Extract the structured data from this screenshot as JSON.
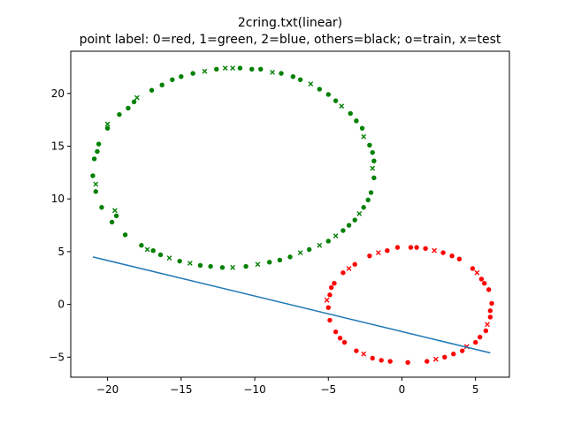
{
  "chart_data": {
    "type": "scatter",
    "title_lines": [
      "2cring.txt(linear)",
      "point label: 0=red, 1=green, 2=blue, others=black; o=train, x=test"
    ],
    "xlabel": "",
    "ylabel": "",
    "xlim": [
      -22.5,
      7.3
    ],
    "ylim": [
      -6.9,
      24.0
    ],
    "xticks": [
      -20,
      -15,
      -10,
      -5,
      0,
      5
    ],
    "xtick_labels": [
      "−20",
      "−15",
      "−10",
      "−5",
      "0",
      "5"
    ],
    "yticks": [
      -5,
      0,
      5,
      10,
      15,
      20
    ],
    "ytick_labels": [
      "−5",
      "0",
      "5",
      "10",
      "15",
      "20"
    ],
    "grid": false,
    "legend": "none",
    "colors": {
      "class0": "#ff0000",
      "class1": "#008000",
      "line": "#1f77b4"
    },
    "series": [
      {
        "label": 0,
        "split": "train",
        "marker": "circle",
        "color": "#ff0000",
        "points": [
          [
            0.6,
            5.4
          ],
          [
            1.6,
            5.3
          ],
          [
            2.8,
            4.9
          ],
          [
            3.9,
            4.3
          ],
          [
            4.8,
            3.4
          ],
          [
            5.4,
            2.4
          ],
          [
            5.9,
            1.4
          ],
          [
            6.1,
            0.1
          ],
          [
            6.0,
            -1.2
          ],
          [
            5.7,
            -2.5
          ],
          [
            5.0,
            -3.6
          ],
          [
            4.1,
            -4.4
          ],
          [
            2.9,
            -5.0
          ],
          [
            1.7,
            -5.4
          ],
          [
            0.4,
            -5.5
          ],
          [
            -0.8,
            -5.4
          ],
          [
            -2.0,
            -5.1
          ],
          [
            -3.1,
            -4.4
          ],
          [
            -3.9,
            -3.6
          ],
          [
            -4.5,
            -2.6
          ],
          [
            -4.9,
            -1.5
          ],
          [
            -5.0,
            -0.3
          ],
          [
            -4.9,
            0.9
          ],
          [
            -4.6,
            2.0
          ],
          [
            -4.0,
            3.0
          ],
          [
            -3.2,
            3.8
          ],
          [
            -2.2,
            4.6
          ],
          [
            -1.0,
            5.1
          ],
          [
            -0.3,
            5.4
          ],
          [
            1.0,
            5.4
          ],
          [
            3.4,
            4.6
          ],
          [
            5.6,
            2.0
          ],
          [
            6.0,
            -0.6
          ],
          [
            5.3,
            -3.1
          ],
          [
            3.5,
            -4.7
          ],
          [
            -1.4,
            -5.3
          ],
          [
            -4.2,
            -3.2
          ],
          [
            -4.8,
            1.6
          ]
        ]
      },
      {
        "label": 0,
        "split": "test",
        "marker": "x",
        "color": "#ff0000",
        "points": [
          [
            2.2,
            5.1
          ],
          [
            5.1,
            3.0
          ],
          [
            5.8,
            -1.9
          ],
          [
            2.3,
            -5.2
          ],
          [
            -2.6,
            -4.7
          ],
          [
            -5.1,
            0.4
          ],
          [
            -3.6,
            3.4
          ],
          [
            4.4,
            -4.0
          ],
          [
            -1.6,
            4.9
          ]
        ]
      },
      {
        "label": 1,
        "split": "train",
        "marker": "circle",
        "color": "#008000",
        "points": [
          [
            -11.0,
            22.4
          ],
          [
            -9.6,
            22.3
          ],
          [
            -8.2,
            21.9
          ],
          [
            -6.9,
            21.3
          ],
          [
            -5.6,
            20.4
          ],
          [
            -4.5,
            19.3
          ],
          [
            -3.5,
            18.1
          ],
          [
            -2.7,
            16.7
          ],
          [
            -2.2,
            15.1
          ],
          [
            -1.9,
            13.6
          ],
          [
            -1.9,
            12.0
          ],
          [
            -2.1,
            10.6
          ],
          [
            -2.6,
            9.2
          ],
          [
            -3.2,
            8.0
          ],
          [
            -4.0,
            7.0
          ],
          [
            -5.0,
            6.0
          ],
          [
            -6.3,
            5.2
          ],
          [
            -7.6,
            4.5
          ],
          [
            -9.0,
            4.0
          ],
          [
            -10.6,
            3.6
          ],
          [
            -12.2,
            3.5
          ],
          [
            -13.7,
            3.7
          ],
          [
            -15.1,
            4.1
          ],
          [
            -16.4,
            4.7
          ],
          [
            -17.7,
            5.6
          ],
          [
            -18.8,
            6.6
          ],
          [
            -19.7,
            7.8
          ],
          [
            -20.4,
            9.2
          ],
          [
            -20.8,
            10.7
          ],
          [
            -21.0,
            12.2
          ],
          [
            -20.9,
            13.8
          ],
          [
            -20.6,
            15.2
          ],
          [
            -20.0,
            16.7
          ],
          [
            -19.2,
            18.0
          ],
          [
            -18.2,
            19.2
          ],
          [
            -17.0,
            20.3
          ],
          [
            -15.6,
            21.3
          ],
          [
            -14.2,
            21.9
          ],
          [
            -12.6,
            22.3
          ],
          [
            -10.2,
            22.3
          ],
          [
            -7.4,
            21.6
          ],
          [
            -5.0,
            19.9
          ],
          [
            -3.1,
            17.4
          ],
          [
            -2.0,
            14.4
          ],
          [
            -2.3,
            9.9
          ],
          [
            -3.6,
            7.5
          ],
          [
            -8.3,
            4.2
          ],
          [
            -13.0,
            3.6
          ],
          [
            -16.9,
            5.1
          ],
          [
            -19.4,
            8.4
          ],
          [
            -20.7,
            14.5
          ],
          [
            -18.6,
            18.6
          ],
          [
            -16.3,
            20.8
          ],
          [
            -15.0,
            21.6
          ]
        ]
      },
      {
        "label": 1,
        "split": "test",
        "marker": "x",
        "color": "#008000",
        "points": [
          [
            -12.0,
            22.4
          ],
          [
            -11.5,
            22.4
          ],
          [
            -8.8,
            22.0
          ],
          [
            -6.2,
            20.9
          ],
          [
            -4.1,
            18.8
          ],
          [
            -2.6,
            15.9
          ],
          [
            -2.0,
            12.9
          ],
          [
            -2.9,
            8.6
          ],
          [
            -4.5,
            6.5
          ],
          [
            -5.6,
            5.6
          ],
          [
            -6.9,
            4.9
          ],
          [
            -9.8,
            3.8
          ],
          [
            -11.5,
            3.5
          ],
          [
            -14.4,
            3.9
          ],
          [
            -15.8,
            4.4
          ],
          [
            -17.3,
            5.2
          ],
          [
            -19.5,
            8.9
          ],
          [
            -20.8,
            11.4
          ],
          [
            -20.0,
            17.1
          ],
          [
            -18.0,
            19.6
          ],
          [
            -13.4,
            22.1
          ]
        ]
      }
    ],
    "decision_boundary": {
      "type": "line",
      "color": "#1f77b4",
      "x": [
        -21.0,
        6.0
      ],
      "y": [
        4.5,
        -4.6
      ]
    }
  }
}
